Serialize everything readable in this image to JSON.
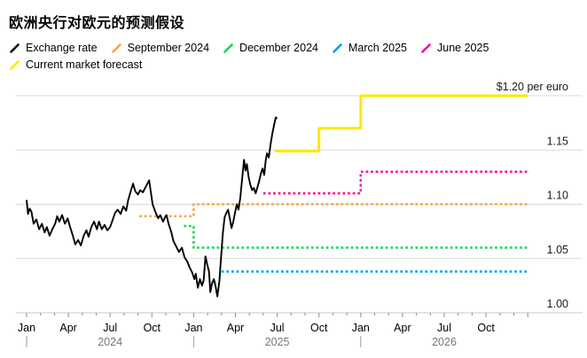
{
  "title": "欧洲央行对欧元的预测假设",
  "legend": {
    "rows": [
      [
        {
          "key": "exchange-rate",
          "label": "Exchange rate",
          "color": "#000000"
        },
        {
          "key": "september-2024",
          "label": "September 2024",
          "color": "#ffa332"
        },
        {
          "key": "december-2024",
          "label": "December 2024",
          "color": "#12d74b"
        },
        {
          "key": "march-2025",
          "label": "March 2025",
          "color": "#00a3f0"
        },
        {
          "key": "june-2025",
          "label": "June 2025",
          "color": "#ff0d8a"
        }
      ],
      [
        {
          "key": "current-market-forecast",
          "label": "Current market forecast",
          "color": "#ffe800"
        }
      ]
    ]
  },
  "chart_data": {
    "type": "line",
    "title": "欧洲央行对欧元的预测假设",
    "x_unit": "months since Jan 2024",
    "x_range": [
      0,
      36
    ],
    "ylim": [
      1.0,
      1.205
    ],
    "grid": "horizontal",
    "legend_position": "top",
    "y_gridlines": [
      1.0,
      1.05,
      1.1,
      1.15,
      1.2
    ],
    "y_tick_labels": [
      {
        "value": 1.2,
        "label": "$1.20 per euro"
      },
      {
        "value": 1.15,
        "label": "1.15"
      },
      {
        "value": 1.1,
        "label": "1.10"
      },
      {
        "value": 1.05,
        "label": "1.05"
      },
      {
        "value": 1.0,
        "label": "1.00"
      }
    ],
    "x_tick_labels": [
      {
        "m": 0,
        "label": "Jan"
      },
      {
        "m": 3,
        "label": "Apr"
      },
      {
        "m": 6,
        "label": "Jul"
      },
      {
        "m": 9,
        "label": "Oct"
      },
      {
        "m": 12,
        "label": "Jan"
      },
      {
        "m": 15,
        "label": "Apr"
      },
      {
        "m": 18,
        "label": "Jul"
      },
      {
        "m": 21,
        "label": "Oct"
      },
      {
        "m": 24,
        "label": "Jan"
      },
      {
        "m": 27,
        "label": "Apr"
      },
      {
        "m": 30,
        "label": "Jul"
      },
      {
        "m": 33,
        "label": "Oct"
      }
    ],
    "year_labels": [
      {
        "m_center": 6,
        "label": "2024"
      },
      {
        "m_center": 18,
        "label": "2025"
      },
      {
        "m_center": 30,
        "label": "2026"
      }
    ],
    "year_separators_m": [
      0,
      12,
      24
    ],
    "series": [
      {
        "key": "september-2024",
        "name": "September 2024",
        "color": "#ffa332",
        "style": "dotted",
        "width": 2.6,
        "points": [
          [
            8.1,
            1.089
          ],
          [
            12,
            1.089
          ],
          [
            12,
            1.1
          ],
          [
            36,
            1.1
          ]
        ]
      },
      {
        "key": "december-2024",
        "name": "December 2024",
        "color": "#12d74b",
        "style": "dotted",
        "width": 2.6,
        "points": [
          [
            11.3,
            1.08
          ],
          [
            12,
            1.08
          ],
          [
            12,
            1.06
          ],
          [
            36,
            1.06
          ]
        ]
      },
      {
        "key": "march-2025",
        "name": "March 2025",
        "color": "#00a3f0",
        "style": "dotted",
        "width": 2.6,
        "points": [
          [
            14,
            1.038
          ],
          [
            36,
            1.038
          ]
        ]
      },
      {
        "key": "june-2025",
        "name": "June 2025",
        "color": "#ff0d8a",
        "style": "dotted",
        "width": 2.6,
        "points": [
          [
            17,
            1.11
          ],
          [
            24,
            1.11
          ],
          [
            24,
            1.13
          ],
          [
            36,
            1.13
          ]
        ]
      },
      {
        "key": "current-market-forecast",
        "name": "Current market forecast",
        "color": "#ffe800",
        "style": "solid",
        "width": 3,
        "points": [
          [
            17.85,
            1.149
          ],
          [
            21,
            1.149
          ],
          [
            21,
            1.17
          ],
          [
            24,
            1.17
          ],
          [
            24,
            1.2
          ],
          [
            36,
            1.2
          ]
        ]
      },
      {
        "key": "exchange-rate",
        "name": "Exchange rate",
        "color": "#000000",
        "style": "solid",
        "width": 1.9,
        "points": [
          [
            0,
            1.104
          ],
          [
            0.1,
            1.091
          ],
          [
            0.22,
            1.096
          ],
          [
            0.35,
            1.093
          ],
          [
            0.5,
            1.082
          ],
          [
            0.7,
            1.086
          ],
          [
            0.9,
            1.077
          ],
          [
            1.1,
            1.082
          ],
          [
            1.3,
            1.074
          ],
          [
            1.45,
            1.079
          ],
          [
            1.65,
            1.071
          ],
          [
            1.85,
            1.077
          ],
          [
            2.05,
            1.082
          ],
          [
            2.2,
            1.089
          ],
          [
            2.35,
            1.084
          ],
          [
            2.55,
            1.09
          ],
          [
            2.75,
            1.082
          ],
          [
            2.95,
            1.087
          ],
          [
            3.1,
            1.08
          ],
          [
            3.3,
            1.072
          ],
          [
            3.5,
            1.063
          ],
          [
            3.7,
            1.067
          ],
          [
            3.9,
            1.062
          ],
          [
            4.1,
            1.071
          ],
          [
            4.3,
            1.076
          ],
          [
            4.45,
            1.07
          ],
          [
            4.65,
            1.079
          ],
          [
            4.85,
            1.084
          ],
          [
            5.05,
            1.077
          ],
          [
            5.2,
            1.084
          ],
          [
            5.4,
            1.077
          ],
          [
            5.6,
            1.081
          ],
          [
            5.8,
            1.076
          ],
          [
            6,
            1.079
          ],
          [
            6.2,
            1.086
          ],
          [
            6.35,
            1.092
          ],
          [
            6.55,
            1.095
          ],
          [
            6.75,
            1.091
          ],
          [
            6.95,
            1.098
          ],
          [
            7.15,
            1.094
          ],
          [
            7.3,
            1.104
          ],
          [
            7.5,
            1.113
          ],
          [
            7.65,
            1.119
          ],
          [
            7.8,
            1.112
          ],
          [
            8,
            1.109
          ],
          [
            8.15,
            1.113
          ],
          [
            8.35,
            1.111
          ],
          [
            8.6,
            1.117
          ],
          [
            8.8,
            1.122
          ],
          [
            9.05,
            1.1
          ],
          [
            9.25,
            1.093
          ],
          [
            9.45,
            1.087
          ],
          [
            9.6,
            1.09
          ],
          [
            9.8,
            1.084
          ],
          [
            9.95,
            1.088
          ],
          [
            10.05,
            1.09
          ],
          [
            10.2,
            1.082
          ],
          [
            10.4,
            1.074
          ],
          [
            10.55,
            1.066
          ],
          [
            10.75,
            1.061
          ],
          [
            10.95,
            1.056
          ],
          [
            11.15,
            1.06
          ],
          [
            11.35,
            1.051
          ],
          [
            11.55,
            1.047
          ],
          [
            11.7,
            1.042
          ],
          [
            11.9,
            1.037
          ],
          [
            12.05,
            1.031
          ],
          [
            12.15,
            1.036
          ],
          [
            12.3,
            1.023
          ],
          [
            12.45,
            1.031
          ],
          [
            12.6,
            1.025
          ],
          [
            12.72,
            1.03
          ],
          [
            12.85,
            1.052
          ],
          [
            12.95,
            1.046
          ],
          [
            13.1,
            1.038
          ],
          [
            13.2,
            1.019
          ],
          [
            13.32,
            1.027
          ],
          [
            13.45,
            1.031
          ],
          [
            13.57,
            1.025
          ],
          [
            13.7,
            1.015
          ],
          [
            13.85,
            1.029
          ],
          [
            13.97,
            1.051
          ],
          [
            14.1,
            1.074
          ],
          [
            14.22,
            1.088
          ],
          [
            14.35,
            1.092
          ],
          [
            14.47,
            1.095
          ],
          [
            14.6,
            1.087
          ],
          [
            14.72,
            1.078
          ],
          [
            14.85,
            1.084
          ],
          [
            14.97,
            1.092
          ],
          [
            15.1,
            1.1
          ],
          [
            15.22,
            1.095
          ],
          [
            15.35,
            1.106
          ],
          [
            15.5,
            1.126
          ],
          [
            15.62,
            1.141
          ],
          [
            15.72,
            1.131
          ],
          [
            15.82,
            1.137
          ],
          [
            15.95,
            1.125
          ],
          [
            16.07,
            1.118
          ],
          [
            16.2,
            1.113
          ],
          [
            16.32,
            1.115
          ],
          [
            16.45,
            1.11
          ],
          [
            16.57,
            1.115
          ],
          [
            16.7,
            1.121
          ],
          [
            16.82,
            1.128
          ],
          [
            16.95,
            1.133
          ],
          [
            17.07,
            1.127
          ],
          [
            17.17,
            1.14
          ],
          [
            17.27,
            1.147
          ],
          [
            17.4,
            1.143
          ],
          [
            17.52,
            1.155
          ],
          [
            17.65,
            1.165
          ],
          [
            17.78,
            1.173
          ],
          [
            17.9,
            1.18
          ],
          [
            18,
            1.179
          ]
        ]
      }
    ]
  }
}
